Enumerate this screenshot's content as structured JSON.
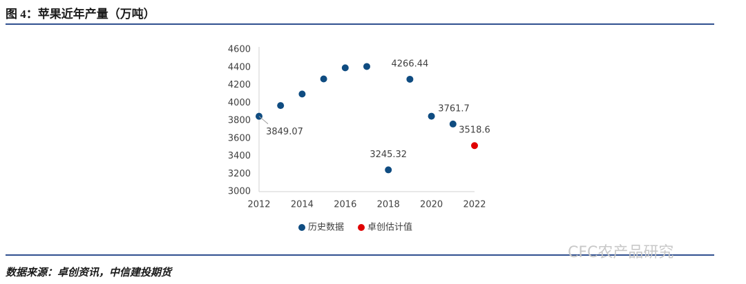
{
  "header": {
    "title": "图 4：苹果近年产量（万吨）"
  },
  "chart_data": {
    "type": "scatter",
    "series": [
      {
        "name": "历史数据",
        "color": "#0f4c81",
        "x": [
          2012,
          2013,
          2014,
          2015,
          2016,
          2017,
          2018,
          2019,
          2020,
          2021
        ],
        "values": [
          3849.07,
          3970,
          4100,
          4270,
          4395,
          4410,
          3245.32,
          4266.44,
          3850,
          3761.7
        ],
        "value_labels": [
          "3849.07",
          null,
          null,
          null,
          null,
          null,
          "3245.32",
          "4266.44",
          null,
          "3761.7"
        ]
      },
      {
        "name": "卓创估计值",
        "color": "#e00000",
        "x": [
          2022
        ],
        "values": [
          3518.6
        ],
        "value_labels": [
          "3518.6"
        ]
      }
    ],
    "xlim": [
      2012,
      2022
    ],
    "xticks": [
      2012,
      2014,
      2016,
      2018,
      2020,
      2022
    ],
    "ylim": [
      3000,
      4600
    ],
    "yticks": [
      3000,
      3200,
      3400,
      3600,
      3800,
      4000,
      4200,
      4400,
      4600
    ],
    "grid": false,
    "legend": "bottom"
  },
  "footer": {
    "source": "数据来源：卓创资讯，中信建投期货",
    "watermark": "CFC农产品研究"
  }
}
